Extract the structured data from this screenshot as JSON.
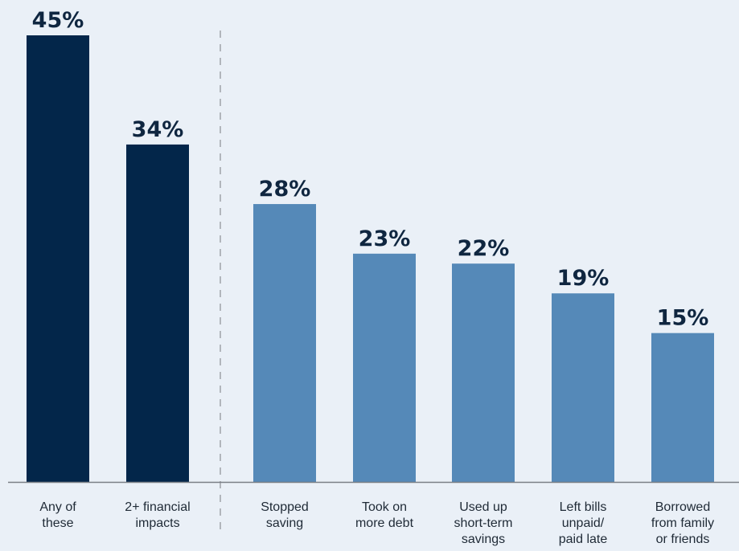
{
  "chart_data": {
    "type": "bar",
    "title": "",
    "xlabel": "",
    "ylabel": "",
    "ylim": [
      0,
      45
    ],
    "grid": false,
    "legend": "none",
    "categories": [
      [
        "Any of",
        "these"
      ],
      [
        "2+ financial",
        "impacts"
      ],
      [
        "Stopped",
        "saving"
      ],
      [
        "Took on",
        "more debt"
      ],
      [
        "Used up",
        "short-term",
        "savings"
      ],
      [
        "Left bills",
        "unpaid/",
        "paid late"
      ],
      [
        "Borrowed",
        "from family",
        "or friends"
      ]
    ],
    "values": [
      45,
      34,
      28,
      23,
      22,
      19,
      15
    ],
    "value_labels": [
      "45%",
      "34%",
      "28%",
      "23%",
      "22%",
      "19%",
      "15%"
    ],
    "bar_colors": [
      "#03264a",
      "#03264a",
      "#5589b8",
      "#5589b8",
      "#5589b8",
      "#5589b8",
      "#5589b8"
    ],
    "divider_after_index": 1
  },
  "colors": {
    "background": "#eaf0f7",
    "summary_bar": "#03264a",
    "detail_bar": "#5589b8",
    "value_text": "#0f2640",
    "axis": "#7a7f86",
    "divider": "#8c9096"
  }
}
